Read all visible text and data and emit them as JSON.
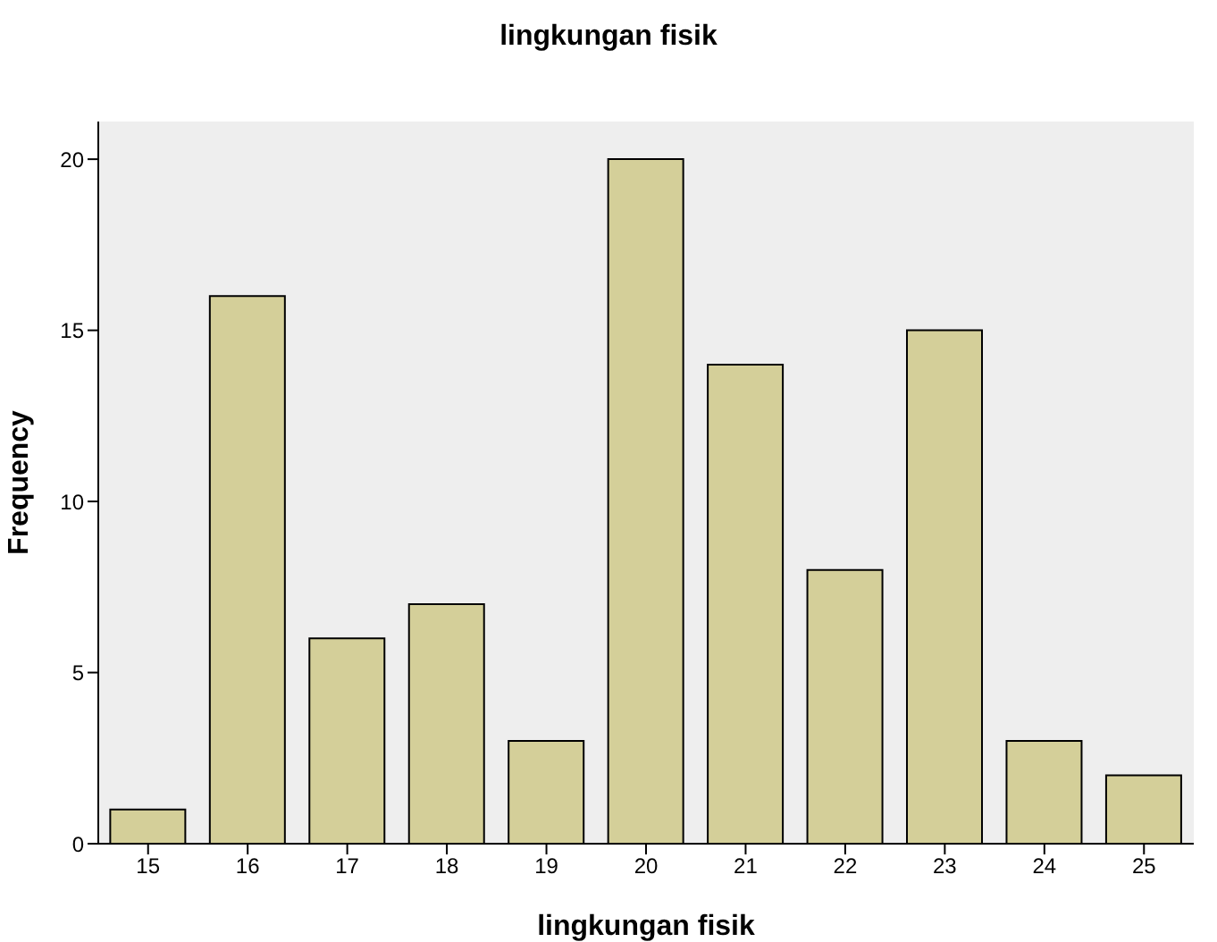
{
  "chart_data": {
    "type": "bar",
    "title": "lingkungan fisik",
    "xlabel": "lingkungan fisik",
    "ylabel": "Frequency",
    "categories": [
      "15",
      "16",
      "17",
      "18",
      "19",
      "20",
      "21",
      "22",
      "23",
      "24",
      "25"
    ],
    "values": [
      1,
      16,
      6,
      7,
      3,
      20,
      14,
      8,
      15,
      3,
      2
    ],
    "color": "#d4cf99",
    "ylim": [
      0,
      21.1
    ],
    "yticks": [
      0,
      5,
      10,
      15,
      20
    ],
    "grid": false
  }
}
